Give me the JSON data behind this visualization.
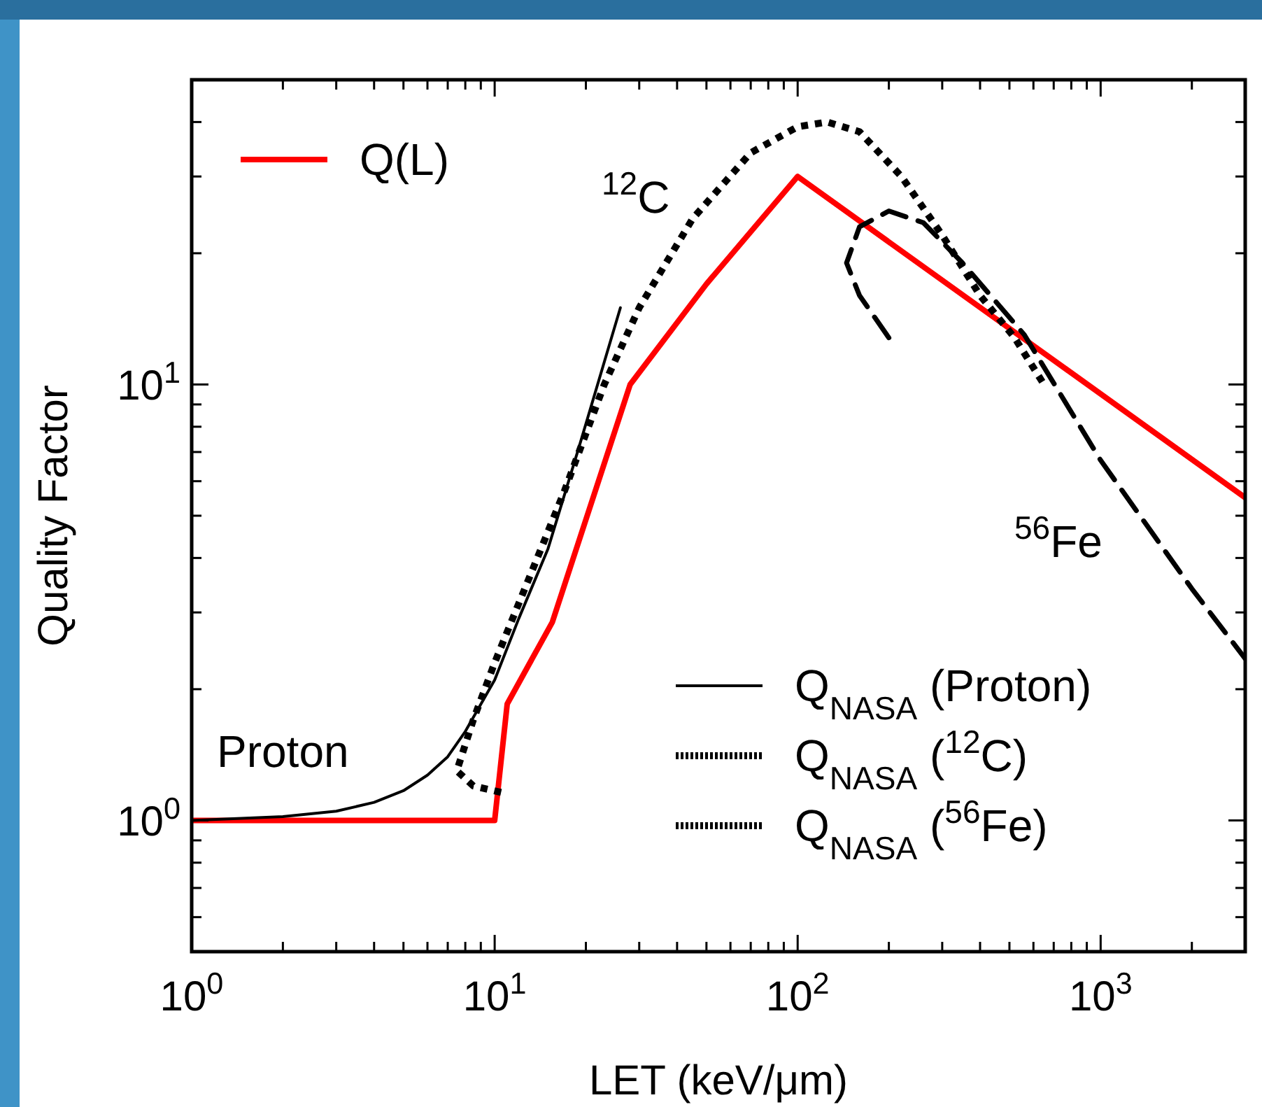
{
  "chart_data": {
    "type": "line",
    "xlabel": "LET (keV/μm)",
    "ylabel": "Quality Factor",
    "log": "xy",
    "xlim": [
      1,
      3000
    ],
    "ylim": [
      0.5,
      50
    ],
    "xticks": [
      {
        "value": 1,
        "label": "10$^{0}$"
      },
      {
        "value": 2,
        "label": null
      },
      {
        "value": 3,
        "label": null
      },
      {
        "value": 4,
        "label": null
      },
      {
        "value": 5,
        "label": null
      },
      {
        "value": 6,
        "label": null
      },
      {
        "value": 7,
        "label": null
      },
      {
        "value": 8,
        "label": null
      },
      {
        "value": 9,
        "label": null
      },
      {
        "value": 10,
        "label": "10$^{1}$"
      },
      {
        "value": 20,
        "label": null
      },
      {
        "value": 30,
        "label": null
      },
      {
        "value": 40,
        "label": null
      },
      {
        "value": 50,
        "label": null
      },
      {
        "value": 60,
        "label": null
      },
      {
        "value": 70,
        "label": null
      },
      {
        "value": 80,
        "label": null
      },
      {
        "value": 90,
        "label": null
      },
      {
        "value": 100,
        "label": "10$^{2}$"
      },
      {
        "value": 200,
        "label": null
      },
      {
        "value": 300,
        "label": null
      },
      {
        "value": 400,
        "label": null
      },
      {
        "value": 500,
        "label": null
      },
      {
        "value": 600,
        "label": null
      },
      {
        "value": 700,
        "label": null
      },
      {
        "value": 800,
        "label": null
      },
      {
        "value": 900,
        "label": null
      },
      {
        "value": 1000,
        "label": "10$^{3}$"
      },
      {
        "value": 2000,
        "label": null
      },
      {
        "value": 3000,
        "label": null
      }
    ],
    "yticks": [
      {
        "value": 0.6,
        "label": null
      },
      {
        "value": 0.7,
        "label": null
      },
      {
        "value": 0.8,
        "label": null
      },
      {
        "value": 0.9,
        "label": null
      },
      {
        "value": 1,
        "label": "10$^{0}$"
      },
      {
        "value": 2,
        "label": null
      },
      {
        "value": 3,
        "label": null
      },
      {
        "value": 4,
        "label": null
      },
      {
        "value": 5,
        "label": null
      },
      {
        "value": 6,
        "label": null
      },
      {
        "value": 7,
        "label": null
      },
      {
        "value": 8,
        "label": null
      },
      {
        "value": 9,
        "label": null
      },
      {
        "value": 10,
        "label": "10$^{1}$"
      },
      {
        "value": 20,
        "label": null
      },
      {
        "value": 30,
        "label": null
      },
      {
        "value": 40,
        "label": null
      },
      {
        "value": 50,
        "label": null
      }
    ],
    "legend": "top left",
    "grid": false,
    "marker": "none",
    "series": [
      {
        "name": "Q(L)",
        "color": "#ff0000",
        "line_style": "solid",
        "x": [
          1,
          10,
          11,
          15.5,
          28,
          50,
          100,
          3000
        ],
        "values": [
          1,
          1,
          1.85,
          2.85,
          10,
          17,
          30,
          5.5
        ]
      },
      {
        "name": "Q$_{NASA}$ (Proton)",
        "color": "#000000",
        "line_style": "solid",
        "x": [
          1,
          2,
          3,
          4,
          5,
          6,
          7,
          8,
          10,
          12,
          15,
          19,
          26
        ],
        "values": [
          1,
          1.02,
          1.05,
          1.1,
          1.17,
          1.27,
          1.4,
          1.6,
          2.1,
          2.9,
          4.2,
          7.2,
          15
        ]
      },
      {
        "name": "Q$_{NASA}$ ($^{12}$C)",
        "color": "#000000",
        "line_style": "dotted",
        "x": [
          10.5,
          8.5,
          7.5,
          8.5,
          10,
          13,
          17,
          23,
          30,
          45,
          70,
          100,
          125,
          160,
          220,
          300,
          400,
          520,
          650
        ],
        "values": [
          1.16,
          1.2,
          1.3,
          1.7,
          2.3,
          3.6,
          5.7,
          10,
          15,
          24,
          34,
          39,
          40,
          38,
          30,
          22,
          16,
          12.8,
          10
        ]
      },
      {
        "name": "Q$_{NASA}$ ($^{56}$Fe)",
        "color": "#000000",
        "line_style": "dashed",
        "x": [
          200,
          160,
          145,
          160,
          200,
          260,
          350,
          560,
          1000,
          2000,
          3000
        ],
        "values": [
          12.8,
          16,
          19,
          23,
          25,
          23.5,
          19,
          13,
          6.7,
          3.4,
          2.35
        ]
      }
    ],
    "annotations": [
      "Proton",
      "$^{12}$C",
      "$^{56}$Fe"
    ]
  }
}
